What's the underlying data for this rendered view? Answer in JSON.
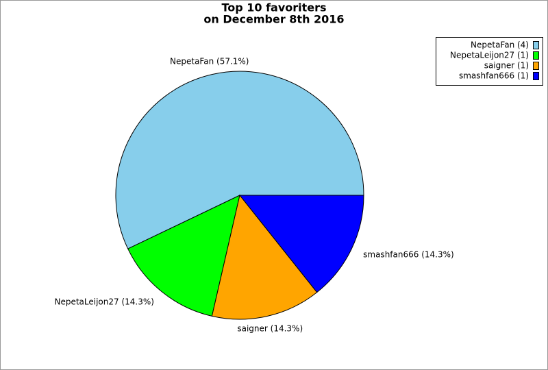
{
  "chart_data": {
    "type": "pie",
    "title": [
      "Top 10 favoriters",
      "on December 8th 2016"
    ],
    "values": [
      57.1,
      14.3,
      14.3,
      14.3
    ],
    "value_labels": [
      "NepetaFan (57.1%)",
      "NepetaLeijon27 (14.3%)",
      "saigner (14.3%)",
      "smashfan666 (14.3%)"
    ],
    "legend_labels": [
      "NepetaFan (4)",
      "NepetaLeijon27 (1)",
      "saigner (1)",
      "smashfan666 (1)"
    ],
    "colors": [
      "#87ceeb",
      "#00ff00",
      "#ffa500",
      "#0000ff"
    ],
    "legend": "upper right"
  }
}
